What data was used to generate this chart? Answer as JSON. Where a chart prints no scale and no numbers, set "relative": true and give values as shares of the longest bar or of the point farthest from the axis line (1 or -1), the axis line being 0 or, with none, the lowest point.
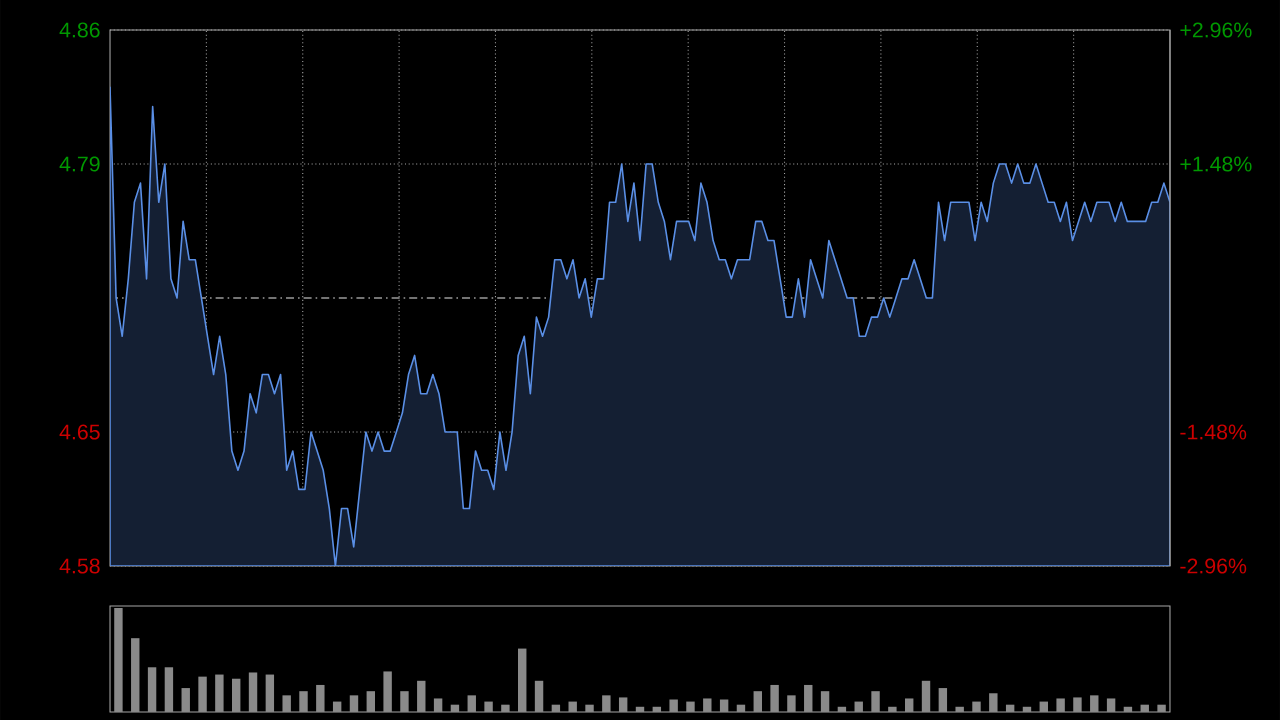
{
  "chart_data": [
    {
      "type": "area",
      "color": "#5a8fe6",
      "grid": true,
      "tick_labels": "y",
      "categories": [
        null,
        null,
        null,
        null,
        null,
        null,
        null,
        null,
        null,
        null,
        null,
        null,
        null,
        null,
        null,
        null,
        null,
        null,
        null,
        null,
        null,
        null,
        null,
        null,
        null,
        null,
        null,
        null,
        null,
        null,
        null,
        null,
        null,
        null,
        null,
        null,
        null,
        null,
        null,
        null,
        null,
        null,
        null,
        null,
        null,
        null,
        null,
        null,
        null,
        null,
        null,
        null,
        null,
        null,
        null,
        null,
        null,
        null,
        null,
        null,
        null,
        null,
        null,
        null,
        null,
        null,
        null,
        null,
        null,
        null,
        null,
        null,
        null,
        null,
        null,
        null,
        null,
        null,
        null,
        null,
        null,
        null,
        null,
        null,
        null,
        null,
        null,
        null,
        null,
        null,
        null,
        null,
        null,
        null,
        null,
        null,
        null,
        null,
        null,
        null,
        null,
        null,
        null,
        null,
        null,
        null,
        null,
        null,
        null,
        null,
        null,
        null,
        null,
        null,
        null,
        null,
        null,
        null,
        null,
        null,
        null,
        null,
        null,
        null,
        null,
        null,
        null,
        null,
        null,
        null,
        null,
        null,
        null,
        null,
        null,
        null,
        null,
        null,
        null,
        null,
        null,
        null,
        null,
        null,
        null,
        null,
        null,
        null,
        null,
        null,
        null,
        null,
        null,
        null,
        null,
        null,
        null,
        null,
        null,
        null,
        null,
        null,
        null,
        null,
        null,
        null,
        null,
        null,
        null,
        null,
        null,
        null,
        null,
        null,
        null
      ],
      "ylim": [
        4.58,
        4.86
      ],
      "yticks": [
        4.58,
        4.65,
        4.79,
        4.86
      ],
      "y2lim": [
        -2.96,
        2.96
      ],
      "y2ticks": [
        {
          "value": -2.96,
          "label": "-2.96%"
        },
        {
          "value": -1.48,
          "label": "-1.48%"
        },
        {
          "value": 1.48,
          "label": "+1.48%"
        },
        {
          "value": 2.96,
          "label": "+2.96%"
        }
      ],
      "ref_lines": [
        {
          "axis": "y",
          "value": 4.72,
          "line_style": "dashed",
          "color": "#9a9a9a"
        }
      ],
      "values": [
        4.83,
        4.72,
        4.7,
        4.73,
        4.77,
        4.78,
        4.73,
        4.82,
        4.77,
        4.79,
        4.73,
        4.72,
        4.76,
        4.74,
        4.74,
        4.72,
        4.7,
        4.68,
        4.7,
        4.68,
        4.64,
        4.63,
        4.64,
        4.67,
        4.66,
        4.68,
        4.68,
        4.67,
        4.68,
        4.63,
        4.64,
        4.62,
        4.62,
        4.65,
        4.64,
        4.63,
        4.61,
        4.58,
        4.61,
        4.61,
        4.59,
        4.62,
        4.65,
        4.64,
        4.65,
        4.64,
        4.64,
        4.65,
        4.66,
        4.68,
        4.69,
        4.67,
        4.67,
        4.68,
        4.67,
        4.65,
        4.65,
        4.65,
        4.61,
        4.61,
        4.64,
        4.63,
        4.63,
        4.62,
        4.65,
        4.63,
        4.65,
        4.69,
        4.7,
        4.67,
        4.71,
        4.7,
        4.71,
        4.74,
        4.74,
        4.73,
        4.74,
        4.72,
        4.73,
        4.71,
        4.73,
        4.73,
        4.77,
        4.77,
        4.79,
        4.76,
        4.78,
        4.75,
        4.79,
        4.79,
        4.77,
        4.76,
        4.74,
        4.76,
        4.76,
        4.76,
        4.75,
        4.78,
        4.77,
        4.75,
        4.74,
        4.74,
        4.73,
        4.74,
        4.74,
        4.74,
        4.76,
        4.76,
        4.75,
        4.75,
        4.73,
        4.71,
        4.71,
        4.73,
        4.71,
        4.74,
        4.73,
        4.72,
        4.75,
        4.74,
        4.73,
        4.72,
        4.72,
        4.7,
        4.7,
        4.71,
        4.71,
        4.72,
        4.71,
        4.72,
        4.73,
        4.73,
        4.74,
        4.73,
        4.72,
        4.72,
        4.77,
        4.75,
        4.77,
        4.77,
        4.77,
        4.77,
        4.75,
        4.77,
        4.76,
        4.78,
        4.79,
        4.79,
        4.78,
        4.79,
        4.78,
        4.78,
        4.79,
        4.78,
        4.77,
        4.77,
        4.76,
        4.77,
        4.75,
        4.76,
        4.77,
        4.76,
        4.77,
        4.77,
        4.77,
        4.76,
        4.77,
        4.76,
        4.76,
        4.76,
        4.76,
        4.77,
        4.77,
        4.78,
        4.77
      ]
    },
    {
      "type": "bar",
      "relative": true,
      "color": "#8a8a8a",
      "tick_labels": false,
      "categories": [
        null,
        null,
        null,
        null,
        null,
        null,
        null,
        null,
        null,
        null,
        null,
        null,
        null,
        null,
        null,
        null,
        null,
        null,
        null,
        null,
        null,
        null,
        null,
        null,
        null,
        null,
        null,
        null,
        null,
        null,
        null,
        null,
        null,
        null,
        null,
        null,
        null,
        null,
        null,
        null,
        null,
        null,
        null,
        null,
        null,
        null,
        null,
        null,
        null,
        null,
        null,
        null,
        null,
        null,
        null,
        null,
        null,
        null,
        null,
        null,
        null,
        null,
        null
      ],
      "values": [
        1.0,
        0.71,
        0.43,
        0.43,
        0.23,
        0.34,
        0.36,
        0.32,
        0.38,
        0.36,
        0.16,
        0.2,
        0.26,
        0.1,
        0.16,
        0.2,
        0.39,
        0.2,
        0.3,
        0.13,
        0.07,
        0.16,
        0.1,
        0.07,
        0.61,
        0.3,
        0.07,
        0.1,
        0.07,
        0.16,
        0.14,
        0.05,
        0.05,
        0.12,
        0.1,
        0.13,
        0.12,
        0.07,
        0.2,
        0.26,
        0.16,
        0.26,
        0.2,
        0.05,
        0.1,
        0.2,
        0.05,
        0.13,
        0.3,
        0.23,
        0.05,
        0.1,
        0.18,
        0.07,
        0.05,
        0.1,
        0.13,
        0.14,
        0.16,
        0.13,
        0.05,
        0.07,
        0.07
      ]
    }
  ]
}
